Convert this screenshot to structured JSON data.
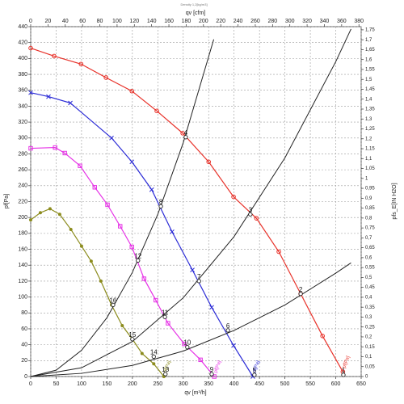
{
  "chart_data": {
    "type": "fan-curve",
    "title": "Density 1,2[kg/m3]",
    "x_label": "qv [m³/h]",
    "x2_label": "qv [cfm]",
    "y_label": "pf[Pa]",
    "y2_label": "pfs_E[IN H2O]",
    "xlim": [
      0,
      650
    ],
    "xticks": [
      0,
      50,
      100,
      150,
      200,
      250,
      300,
      350,
      400,
      450,
      500,
      550,
      600,
      650
    ],
    "x2lim": [
      0,
      382.6
    ],
    "x2ticks": [
      0,
      20,
      40,
      60,
      80,
      100,
      120,
      140,
      160,
      180,
      200,
      220,
      240,
      260,
      280,
      300,
      320,
      340,
      360,
      380
    ],
    "ylim": [
      0,
      440
    ],
    "yticks": [
      0,
      20,
      40,
      60,
      80,
      100,
      120,
      140,
      160,
      180,
      200,
      220,
      240,
      260,
      280,
      300,
      320,
      340,
      360,
      380,
      400,
      420,
      440
    ],
    "y2lim": [
      0,
      1.766
    ],
    "y2ticks": [
      0,
      {
        "value": 0.05,
        "label": "0,05"
      },
      {
        "value": 0.1,
        "label": "0,1"
      },
      {
        "value": 0.15,
        "label": "0,15"
      },
      {
        "value": 0.2,
        "label": "0,2"
      },
      {
        "value": 0.25,
        "label": "0,25"
      },
      {
        "value": 0.3,
        "label": "0,3"
      },
      {
        "value": 0.35,
        "label": "0,35"
      },
      {
        "value": 0.4,
        "label": "0,4"
      },
      {
        "value": 0.45,
        "label": "0,45"
      },
      {
        "value": 0.5,
        "label": "0,5"
      },
      {
        "value": 0.55,
        "label": "0,55"
      },
      {
        "value": 0.6,
        "label": "0,6"
      },
      {
        "value": 0.65,
        "label": "0,65"
      },
      {
        "value": 0.7,
        "label": "0,7"
      },
      {
        "value": 0.75,
        "label": "0,75"
      },
      {
        "value": 0.8,
        "label": "0,8"
      },
      {
        "value": 0.85,
        "label": "0,85"
      },
      {
        "value": 0.9,
        "label": "0,9"
      },
      {
        "value": 0.95,
        "label": "0,95"
      },
      1,
      {
        "value": 1.05,
        "label": "1,05"
      },
      {
        "value": 1.1,
        "label": "1,1"
      },
      {
        "value": 1.15,
        "label": "1,15"
      },
      {
        "value": 1.2,
        "label": "1,2"
      },
      {
        "value": 1.25,
        "label": "1,25"
      },
      {
        "value": 1.3,
        "label": "1,3"
      },
      {
        "value": 1.35,
        "label": "1,35"
      },
      {
        "value": 1.4,
        "label": "1,4"
      },
      {
        "value": 1.45,
        "label": "1,45"
      },
      {
        "value": 1.5,
        "label": "1,5"
      },
      {
        "value": 1.55,
        "label": "1,55"
      },
      {
        "value": 1.6,
        "label": "1,6"
      },
      {
        "value": 1.65,
        "label": "1,65"
      },
      {
        "value": 1.7,
        "label": "1,7"
      },
      {
        "value": 1.75,
        "label": "1,75"
      }
    ],
    "grid": true,
    "series": [
      {
        "name": "pf[Pa]",
        "color": "#e8322a",
        "marker": "circle",
        "x": [
          0,
          46,
          99,
          148,
          199,
          248,
          299,
          350,
          399,
          444,
          488,
          531,
          574,
          614
        ],
        "values": [
          413,
          403,
          393,
          376,
          359,
          334,
          306,
          270,
          226,
          199,
          157,
          104,
          51,
          6
        ]
      },
      {
        "name": "pf[Pa]",
        "color": "#2b2bd6",
        "marker": "cross",
        "x": [
          0,
          35,
          78,
          159,
          199,
          238,
          278,
          318,
          356,
          399,
          437
        ],
        "values": [
          357,
          352,
          344,
          300,
          270,
          235,
          182,
          134,
          87,
          39,
          0
        ]
      },
      {
        "name": "pf[Pa]",
        "color": "#e632e6",
        "marker": "square",
        "x": [
          0,
          48,
          67,
          97,
          126,
          151,
          176,
          199,
          223,
          246,
          270,
          302,
          334,
          361
        ],
        "values": [
          287,
          288,
          281,
          265,
          238,
          216,
          189,
          163,
          123,
          96,
          67,
          41,
          21,
          0
        ]
      },
      {
        "name": "pf[Pa]",
        "color": "#8c8c1e",
        "marker": "dot",
        "x": [
          0,
          19,
          38,
          57,
          79,
          100,
          119,
          138,
          159,
          180,
          200,
          219,
          242,
          262
        ],
        "values": [
          197,
          206,
          211,
          204,
          185,
          164,
          145,
          120,
          90,
          64,
          47,
          29,
          16,
          0
        ]
      },
      {
        "color": "#222222",
        "marker": "none",
        "x": [
          0,
          50,
          100,
          150,
          200,
          250,
          300,
          360
        ],
        "values": [
          0,
          8,
          33,
          74,
          131,
          204,
          294,
          424
        ]
      },
      {
        "color": "#222222",
        "marker": "none",
        "x": [
          0,
          100,
          200,
          300,
          400,
          500,
          600,
          630
        ],
        "values": [
          0,
          11,
          44,
          99,
          176,
          275,
          396,
          437
        ]
      },
      {
        "color": "#222222",
        "marker": "none",
        "x": [
          0,
          100,
          200,
          300,
          400,
          500,
          600,
          630
        ],
        "values": [
          0,
          4,
          14,
          32,
          58,
          90,
          130,
          143
        ]
      }
    ],
    "operating_points": [
      {
        "label": 1,
        "x": 615,
        "y": 2
      },
      {
        "label": 2,
        "x": 531,
        "y": 104
      },
      {
        "label": 3,
        "x": 432,
        "y": 204
      },
      {
        "label": 4,
        "x": 305,
        "y": 301
      },
      {
        "label": 5,
        "x": 440,
        "y": 2
      },
      {
        "label": 6,
        "x": 388,
        "y": 58
      },
      {
        "label": 7,
        "x": 331,
        "y": 120
      },
      {
        "label": 8,
        "x": 256,
        "y": 214
      },
      {
        "label": 9,
        "x": 356,
        "y": 3
      },
      {
        "label": 10,
        "x": 308,
        "y": 37
      },
      {
        "label": 11,
        "x": 264,
        "y": 75
      },
      {
        "label": 12,
        "x": 211,
        "y": 146
      },
      {
        "label": 13,
        "x": 265,
        "y": 3
      },
      {
        "label": 14,
        "x": 242,
        "y": 25
      },
      {
        "label": 15,
        "x": 200,
        "y": 47
      },
      {
        "label": 16,
        "x": 162,
        "y": 90
      }
    ]
  }
}
